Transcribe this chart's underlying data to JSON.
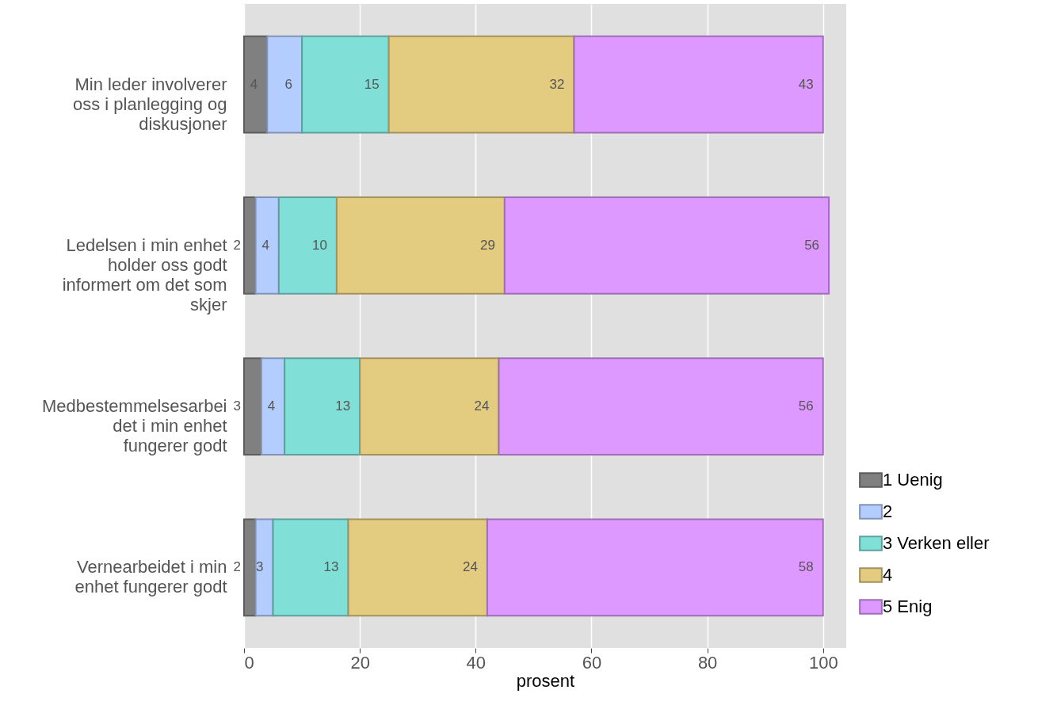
{
  "chart_data": {
    "type": "bar",
    "orientation": "horizontal",
    "stacked": true,
    "data_labels": true,
    "categories": [
      "Min leder involverer oss i planlegging og diskusjoner",
      "Ledelsen i min enhet holder oss godt informert om det som skjer",
      "Medbestemmelsesarbeidet i min enhet fungerer godt",
      "Vernearbeidet i min enhet fungerer godt"
    ],
    "series": [
      {
        "name": "1 Uenig",
        "color": "#808080",
        "values": [
          4,
          2,
          3,
          2
        ]
      },
      {
        "name": "2",
        "color": "#b3cdfe",
        "values": [
          6,
          4,
          4,
          3
        ]
      },
      {
        "name": "3 Verken eller",
        "color": "#80e0d8",
        "values": [
          15,
          10,
          13,
          13
        ]
      },
      {
        "name": "4",
        "color": "#e3cb80",
        "values": [
          32,
          29,
          24,
          24
        ]
      },
      {
        "name": "5 Enig",
        "color": "#dd99ff",
        "values": [
          43,
          56,
          56,
          58
        ]
      }
    ],
    "xlim": [
      0,
      104
    ],
    "xticks": [
      0,
      20,
      40,
      60,
      80,
      100
    ],
    "xlabel": "prosent",
    "grid": "x",
    "legend": "right"
  }
}
